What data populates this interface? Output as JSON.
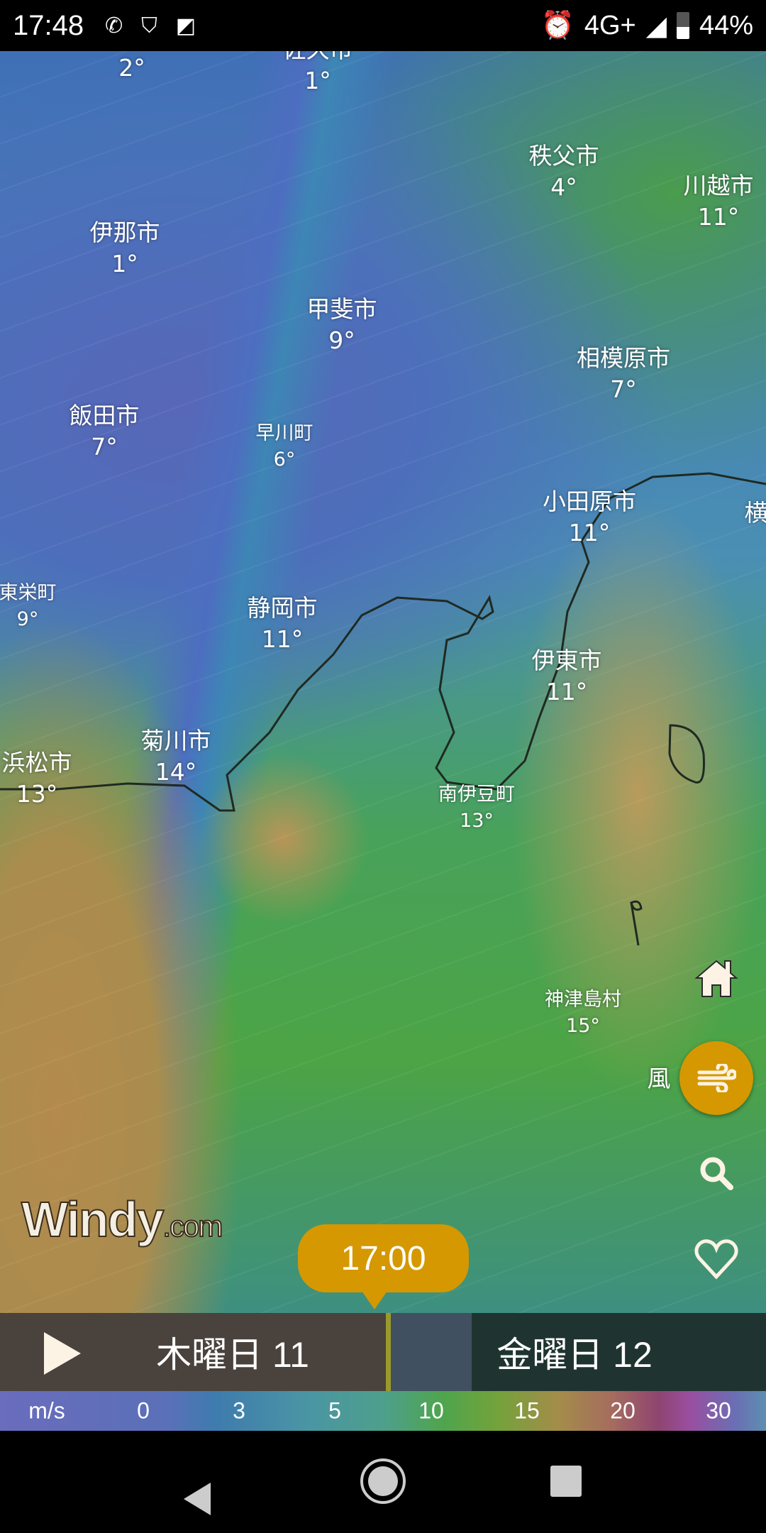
{
  "status_bar": {
    "time": "17:48",
    "network": "4G+",
    "battery": "44%",
    "icons": [
      "wifi-calling-icon",
      "shield-search-icon",
      "app-k-icon",
      "alarm-icon",
      "signal-icon",
      "battery-icon"
    ]
  },
  "map": {
    "labels": [
      {
        "name": "",
        "temp": "2°"
      },
      {
        "name": "佐久市",
        "temp": "1°"
      },
      {
        "name": "秩父市",
        "temp": "4°"
      },
      {
        "name": "川越市",
        "temp": "11°"
      },
      {
        "name": "伊那市",
        "temp": "1°"
      },
      {
        "name": "甲斐市",
        "temp": "9°"
      },
      {
        "name": "相模原市",
        "temp": "7°"
      },
      {
        "name": "飯田市",
        "temp": "7°"
      },
      {
        "name": "早川町",
        "temp": "6°"
      },
      {
        "name": "小田原市",
        "temp": "11°"
      },
      {
        "name": "横",
        "temp": ""
      },
      {
        "name": "東栄町",
        "temp": "9°"
      },
      {
        "name": "静岡市",
        "temp": "11°"
      },
      {
        "name": "伊東市",
        "temp": "11°"
      },
      {
        "name": "浜松市",
        "temp": "13°"
      },
      {
        "name": "菊川市",
        "temp": "14°"
      },
      {
        "name": "南伊豆町",
        "temp": "13°"
      },
      {
        "name": "神津島村",
        "temp": "15°"
      }
    ]
  },
  "controls": {
    "layer_label": "風",
    "accent": "#d59800"
  },
  "logo": {
    "main": "Windy",
    "suffix": ".com"
  },
  "timeline": {
    "current_time": "17:00",
    "day1": "木曜日 11",
    "day2": "金曜日 12"
  },
  "legend": {
    "unit": "m/s",
    "ticks": [
      "0",
      "3",
      "5",
      "10",
      "15",
      "20",
      "30"
    ]
  }
}
